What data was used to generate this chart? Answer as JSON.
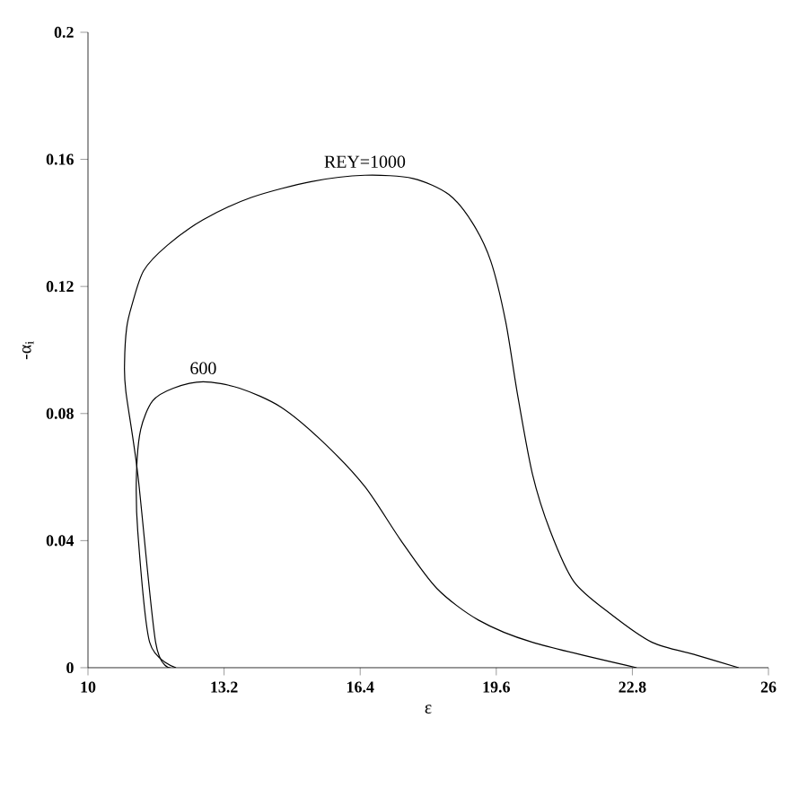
{
  "chart_data": {
    "type": "line",
    "xlabel": "ε",
    "ylabel": "-α$_{i}$",
    "xlim": [
      10,
      26
    ],
    "ylim": [
      0,
      0.2
    ],
    "xticks": [
      10,
      13.2,
      16.4,
      19.6,
      22.8,
      26
    ],
    "yticks": [
      0,
      0.04,
      0.08,
      0.12,
      0.16,
      0.2
    ],
    "grid": false,
    "marker": "none",
    "line_style": "solid",
    "series": [
      {
        "name": "REY=1000",
        "color": "#000000",
        "x": [
          11.94,
          11.59,
          11.17,
          10.89,
          10.86,
          10.91,
          11.03,
          11.31,
          11.87,
          12.71,
          13.84,
          15.25,
          16.51,
          17.64,
          18.48,
          19.04,
          19.47,
          19.82,
          20.1,
          20.45,
          20.87,
          21.43,
          22.28,
          23.26,
          24.3,
          25.3
        ],
        "values": [
          0,
          0.008,
          0.061,
          0.087,
          0.096,
          0.107,
          0.114,
          0.125,
          0.133,
          0.141,
          0.148,
          0.153,
          0.155,
          0.154,
          0.149,
          0.14,
          0.128,
          0.109,
          0.086,
          0.061,
          0.043,
          0.027,
          0.017,
          0.008,
          0.004,
          0
        ]
      },
      {
        "name": "600",
        "color": "#000000",
        "x": [
          12.07,
          11.45,
          11.17,
          11.14,
          11.24,
          11.52,
          12.01,
          12.71,
          13.56,
          14.54,
          15.53,
          16.51,
          17.36,
          18.2,
          19.18,
          20.45,
          22.9
        ],
        "values": [
          0,
          0.008,
          0.043,
          0.061,
          0.075,
          0.084,
          0.088,
          0.09,
          0.088,
          0.082,
          0.071,
          0.057,
          0.04,
          0.025,
          0.015,
          0.008,
          0
        ]
      }
    ]
  }
}
